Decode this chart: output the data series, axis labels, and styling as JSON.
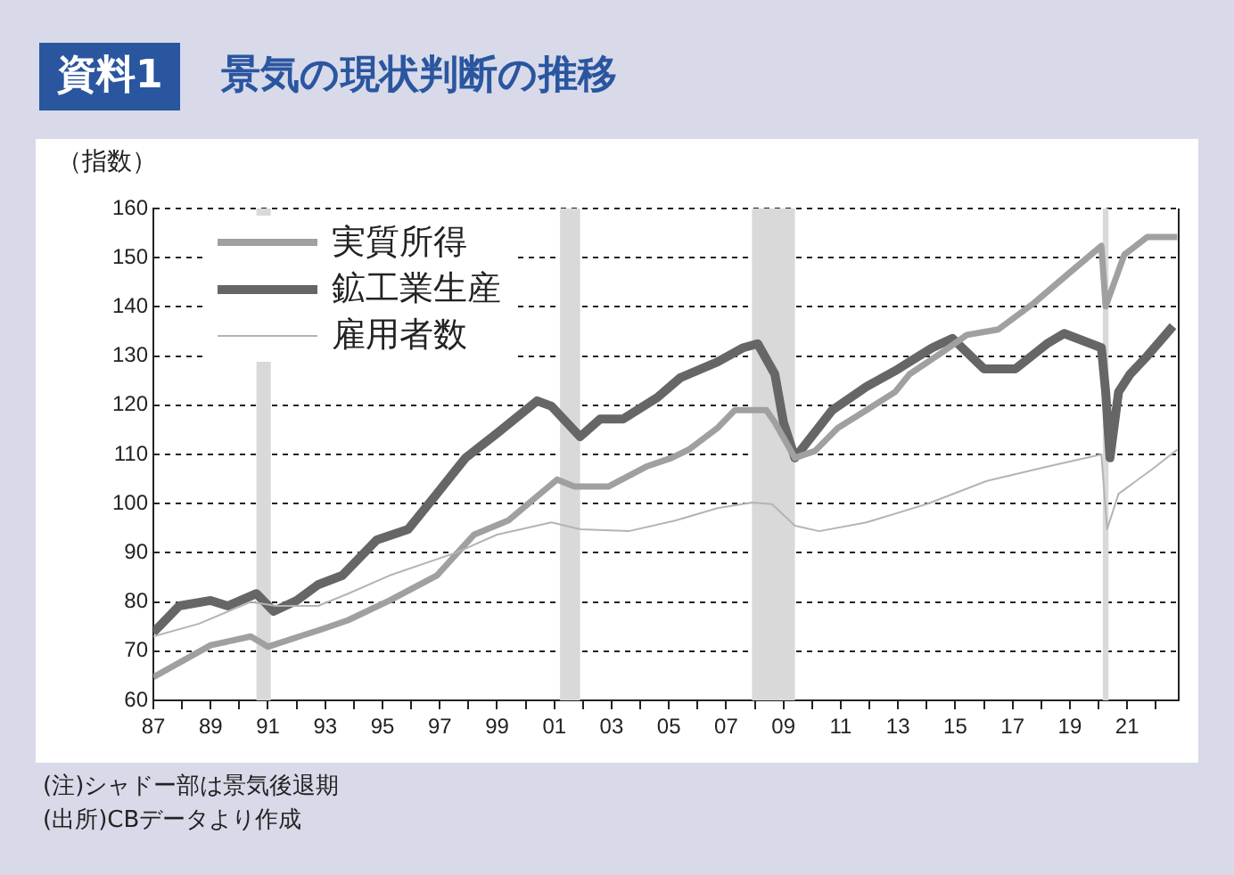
{
  "chart_data": {
    "type": "line",
    "title": "景気の現状判断の推移",
    "ylabel": "（指数）",
    "annotations": [
      "資料1",
      "(注)シャドー部は景気後退期",
      "(出所)CBデータより作成"
    ],
    "xlim": [
      1987,
      2022.8
    ],
    "xticks": [
      {
        "value": 1987,
        "label": "87"
      },
      {
        "value": 1988,
        "label": null
      },
      {
        "value": 1989,
        "label": "89"
      },
      {
        "value": 1990,
        "label": null
      },
      {
        "value": 1991,
        "label": "91"
      },
      {
        "value": 1992,
        "label": null
      },
      {
        "value": 1993,
        "label": "93"
      },
      {
        "value": 1994,
        "label": null
      },
      {
        "value": 1995,
        "label": "95"
      },
      {
        "value": 1996,
        "label": null
      },
      {
        "value": 1997,
        "label": "97"
      },
      {
        "value": 1998,
        "label": null
      },
      {
        "value": 1999,
        "label": "99"
      },
      {
        "value": 2000,
        "label": null
      },
      {
        "value": 2001,
        "label": "01"
      },
      {
        "value": 2002,
        "label": null
      },
      {
        "value": 2003,
        "label": "03"
      },
      {
        "value": 2004,
        "label": null
      },
      {
        "value": 2005,
        "label": "05"
      },
      {
        "value": 2006,
        "label": null
      },
      {
        "value": 2007,
        "label": "07"
      },
      {
        "value": 2008,
        "label": null
      },
      {
        "value": 2009,
        "label": "09"
      },
      {
        "value": 2010,
        "label": null
      },
      {
        "value": 2011,
        "label": "11"
      },
      {
        "value": 2012,
        "label": null
      },
      {
        "value": 2013,
        "label": "13"
      },
      {
        "value": 2014,
        "label": null
      },
      {
        "value": 2015,
        "label": "15"
      },
      {
        "value": 2016,
        "label": null
      },
      {
        "value": 2017,
        "label": "17"
      },
      {
        "value": 2018,
        "label": null
      },
      {
        "value": 2019,
        "label": "19"
      },
      {
        "value": 2020,
        "label": null
      },
      {
        "value": 2021,
        "label": "21"
      },
      {
        "value": 2022,
        "label": null
      }
    ],
    "ylim": [
      60,
      160
    ],
    "yticks": [
      60,
      70,
      80,
      90,
      100,
      110,
      120,
      130,
      140,
      150,
      160
    ],
    "grid": "y",
    "legend": "top left",
    "marker": "none",
    "line_style": "solid",
    "bands": [
      {
        "axis": "x",
        "from": 1990.6,
        "to": 1991.1,
        "color": "#d9d9d9"
      },
      {
        "axis": "x",
        "from": 2001.2,
        "to": 2001.9,
        "color": "#d9d9d9"
      },
      {
        "axis": "x",
        "from": 2007.9,
        "to": 2009.4,
        "color": "#d9d9d9"
      },
      {
        "axis": "x",
        "from": 2020.15,
        "to": 2020.35,
        "color": "#d9d9d9"
      }
    ],
    "series": [
      {
        "name": "雇用者数",
        "color": "#b4b4b4",
        "x": [
          1987,
          1988.6,
          1990.4,
          1991.3,
          1992.75,
          1993.8,
          1995.25,
          1997.6,
          1999,
          2000.9,
          2001.9,
          2003.6,
          2005.25,
          2006.7,
          2007.9,
          2008.6,
          2009.4,
          2010.25,
          2011.9,
          2014,
          2016.1,
          2018.2,
          2020.1,
          2020.3,
          2020.7,
          2021.9,
          2022.75
        ],
        "values": [
          73,
          75.6,
          80,
          79.2,
          79.2,
          81.7,
          85.4,
          90.1,
          93.7,
          96.2,
          94.8,
          94.4,
          96.6,
          99.1,
          100.2,
          99.9,
          95.5,
          94.4,
          96.2,
          99.9,
          104.6,
          107.5,
          110,
          94.8,
          102,
          107.1,
          111
        ]
      },
      {
        "name": "実質所得",
        "color": "#a0a0a0",
        "x": [
          1987,
          1989,
          1990.4,
          1991,
          1992.1,
          1992.9,
          1993.8,
          1995.25,
          1996.9,
          1998.2,
          1999.4,
          2000.3,
          2001.1,
          2001.7,
          2002.9,
          2004.2,
          2005.1,
          2005.7,
          2006.7,
          2007.3,
          2008.4,
          2008.7,
          2009.4,
          2010.1,
          2010.9,
          2011.9,
          2012.9,
          2013.4,
          2014.6,
          2015.4,
          2016.5,
          2017.75,
          2019,
          2020.1,
          2020.25,
          2020.9,
          2021.7,
          2022.75
        ],
        "values": [
          64.7,
          71.2,
          73,
          70.9,
          73,
          74.5,
          76.3,
          80.3,
          85.4,
          93.7,
          96.6,
          101,
          104.9,
          103.5,
          103.5,
          107.5,
          109.3,
          111,
          115.4,
          119,
          119,
          116.5,
          109.3,
          110.7,
          115.4,
          119,
          122.7,
          126.3,
          131,
          134.3,
          135.4,
          140.8,
          147,
          152.4,
          140.1,
          150.6,
          154.2,
          154.2
        ]
      },
      {
        "name": "鉱工業生産",
        "color": "#666666",
        "x": [
          1987,
          1987.9,
          1989,
          1989.6,
          1990.6,
          1991.2,
          1992,
          1992.75,
          1993.6,
          1994.8,
          1995.9,
          1996.9,
          1997.9,
          1999,
          2000.4,
          2000.9,
          2001.9,
          2002.6,
          2003.4,
          2004.6,
          2005.4,
          2006.7,
          2007.6,
          2008.1,
          2008.7,
          2009,
          2009.4,
          2010.7,
          2011.9,
          2012.9,
          2014.2,
          2014.9,
          2016,
          2017.1,
          2018.2,
          2018.8,
          2020.1,
          2020.25,
          2020.4,
          2020.7,
          2021.1,
          2021.7,
          2022.6
        ],
        "values": [
          73.8,
          79.2,
          80.3,
          79.2,
          81.7,
          78.1,
          80.3,
          83.5,
          85.4,
          92.6,
          94.8,
          102,
          109.3,
          114.3,
          120.9,
          119.8,
          113.6,
          117.2,
          117.2,
          121.6,
          125.6,
          128.8,
          131.7,
          132.5,
          126.3,
          116.5,
          109.3,
          119,
          123.8,
          127,
          131.7,
          133.6,
          127.4,
          127.4,
          132.5,
          134.6,
          131.7,
          122.7,
          109.3,
          122.7,
          126.3,
          130,
          136.1
        ]
      }
    ]
  }
}
